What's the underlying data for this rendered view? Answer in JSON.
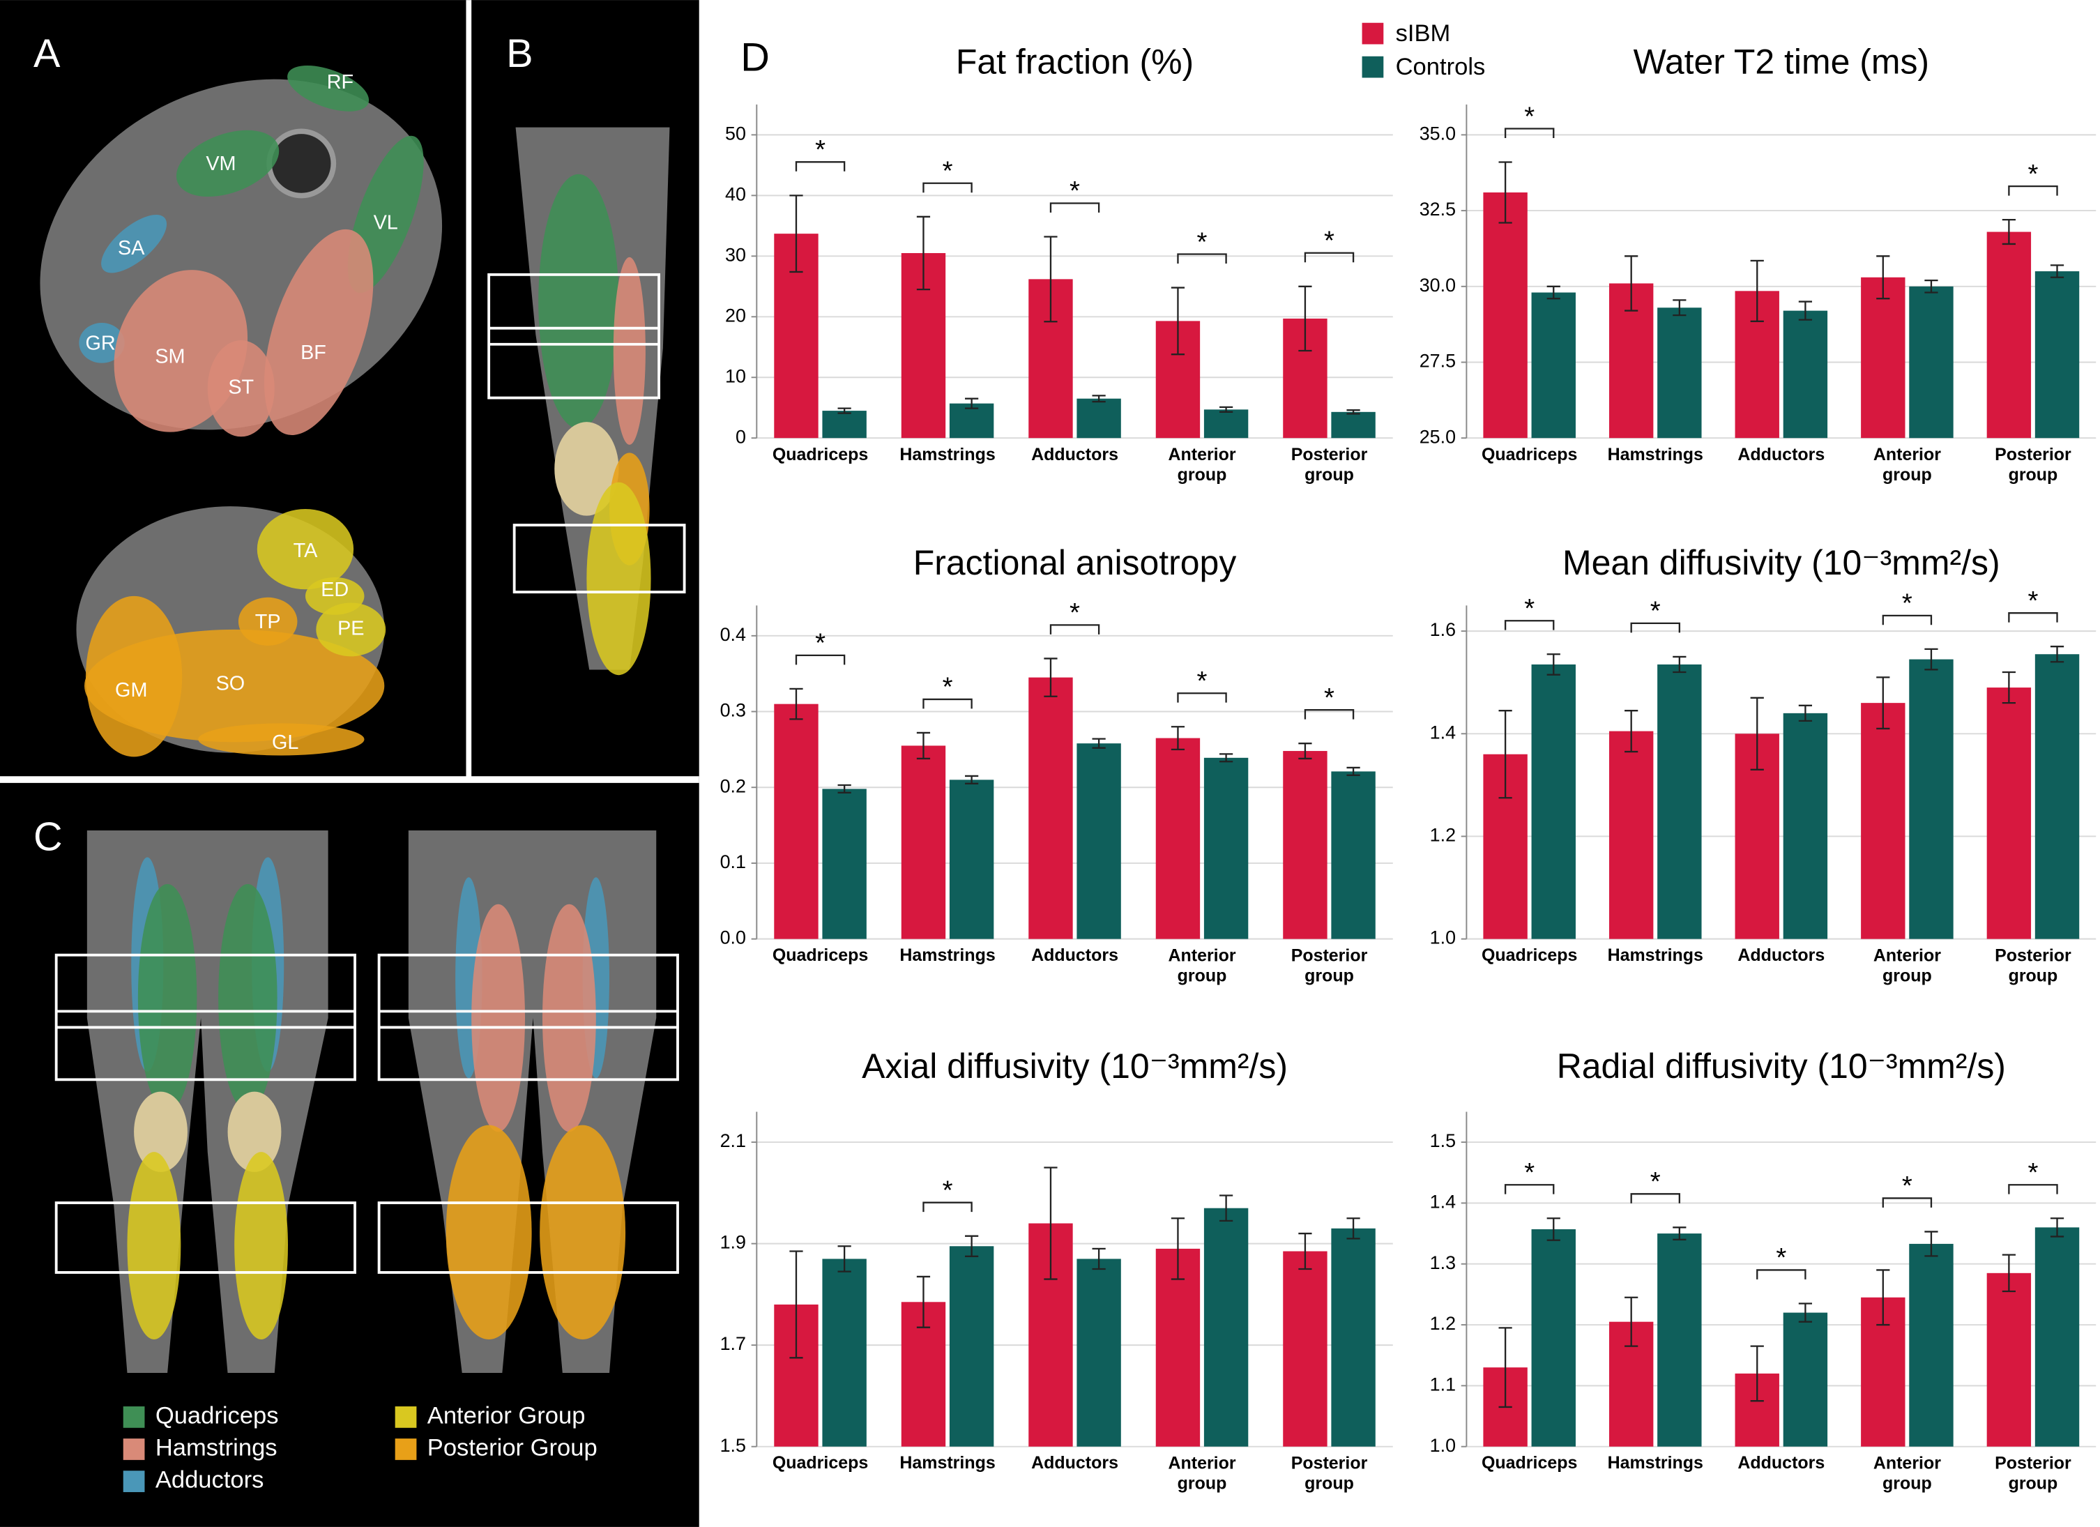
{
  "panels": {
    "labels": [
      "A",
      "B",
      "C",
      "D"
    ],
    "muscles": [
      "RF",
      "VM",
      "VL",
      "SA",
      "GR",
      "SM",
      "ST",
      "BF",
      "TA",
      "ED",
      "PE",
      "TP",
      "GM",
      "SO",
      "GL"
    ],
    "groups": [
      {
        "name": "Quadriceps",
        "color": "#3f8f55"
      },
      {
        "name": "Hamstrings",
        "color": "#d98a78"
      },
      {
        "name": "Adductors",
        "color": "#4a97b8"
      },
      {
        "name": "Anterior Group",
        "color": "#d9c820"
      },
      {
        "name": "Posterior Group",
        "color": "#e8a018"
      }
    ]
  },
  "legend": [
    {
      "name": "sIBM",
      "color": "#d7183f"
    },
    {
      "name": "Controls",
      "color": "#0f5f5b"
    }
  ],
  "chart_data": [
    {
      "type": "bar",
      "title": "Fat fraction (%)",
      "categories": [
        "Quadriceps",
        "Hamstrings",
        "Adductors",
        "Anterior group",
        "Posterior group"
      ],
      "series": [
        {
          "color": "#d7183f",
          "values": [
            33.7,
            30.5,
            26.2,
            19.3,
            19.7
          ],
          "errors": [
            6.3,
            6,
            7,
            5.5,
            5.3
          ]
        },
        {
          "color": "#0f5f5b",
          "values": [
            4.5,
            5.7,
            6.5,
            4.7,
            4.3
          ],
          "errors": [
            0.4,
            0.8,
            0.5,
            0.4,
            0.3
          ]
        }
      ],
      "significance": [
        "*",
        "*",
        "*",
        "*",
        "*"
      ],
      "ylim": [
        0,
        55
      ],
      "yticks": [
        0,
        10,
        20,
        30,
        40,
        50
      ],
      "grid": true
    },
    {
      "type": "bar",
      "title": "Water T2 time (ms)",
      "categories": [
        "Quadriceps",
        "Hamstrings",
        "Adductors",
        "Anterior group",
        "Posterior group"
      ],
      "series": [
        {
          "color": "#d7183f",
          "values": [
            33.1,
            30.1,
            29.85,
            30.3,
            31.8
          ],
          "errors": [
            1.0,
            0.9,
            1.0,
            0.7,
            0.4
          ]
        },
        {
          "color": "#0f5f5b",
          "values": [
            29.8,
            29.3,
            29.2,
            30.0,
            30.5
          ],
          "errors": [
            0.2,
            0.25,
            0.3,
            0.2,
            0.2
          ]
        }
      ],
      "significance": [
        "*",
        null,
        null,
        null,
        "*"
      ],
      "ylim": [
        25,
        36
      ],
      "yticks": [
        {
          "value": 25,
          "label": "25.0"
        },
        {
          "value": 27.5,
          "label": "27.5"
        },
        {
          "value": 30,
          "label": "30.0"
        },
        {
          "value": 32.5,
          "label": "32.5"
        },
        {
          "value": 35,
          "label": "35.0"
        }
      ],
      "grid": true
    },
    {
      "type": "bar",
      "title": "Fractional anisotropy",
      "categories": [
        "Quadriceps",
        "Hamstrings",
        "Adductors",
        "Anterior group",
        "Posterior group"
      ],
      "series": [
        {
          "color": "#d7183f",
          "values": [
            0.31,
            0.255,
            0.345,
            0.265,
            0.248
          ],
          "errors": [
            0.02,
            0.017,
            0.025,
            0.015,
            0.01
          ]
        },
        {
          "color": "#0f5f5b",
          "values": [
            0.198,
            0.21,
            0.258,
            0.239,
            0.221
          ],
          "errors": [
            0.005,
            0.005,
            0.006,
            0.005,
            0.005
          ]
        }
      ],
      "significance": [
        "*",
        "*",
        "*",
        "*",
        "*"
      ],
      "ylim": [
        0,
        0.44
      ],
      "yticks": [
        {
          "value": 0,
          "label": "0.0"
        },
        0.1,
        0.2,
        0.3,
        0.4
      ],
      "grid": true
    },
    {
      "type": "bar",
      "title": "Mean diffusivity (10⁻³mm²/s)",
      "categories": [
        "Quadriceps",
        "Hamstrings",
        "Adductors",
        "Anterior group",
        "Posterior group"
      ],
      "series": [
        {
          "color": "#d7183f",
          "values": [
            1.36,
            1.405,
            1.4,
            1.46,
            1.49
          ],
          "errors": [
            0.085,
            0.04,
            0.07,
            0.05,
            0.03
          ]
        },
        {
          "color": "#0f5f5b",
          "values": [
            1.535,
            1.535,
            1.44,
            1.545,
            1.555
          ],
          "errors": [
            0.02,
            0.015,
            0.015,
            0.02,
            0.015
          ]
        }
      ],
      "significance": [
        "*",
        "*",
        null,
        "*",
        "*"
      ],
      "ylim": [
        1.0,
        1.65
      ],
      "yticks": [
        {
          "value": 1,
          "label": "1.0"
        },
        1.2,
        1.4,
        1.6
      ],
      "grid": true
    },
    {
      "type": "bar",
      "title": "Axial diffusivity (10⁻³mm²/s)",
      "categories": [
        "Quadriceps",
        "Hamstrings",
        "Adductors",
        "Anterior group",
        "Posterior group"
      ],
      "series": [
        {
          "color": "#d7183f",
          "values": [
            1.78,
            1.785,
            1.94,
            1.89,
            1.885
          ],
          "errors": [
            0.105,
            0.05,
            0.11,
            0.06,
            0.035
          ]
        },
        {
          "color": "#0f5f5b",
          "values": [
            1.87,
            1.895,
            1.87,
            1.97,
            1.93
          ],
          "errors": [
            0.025,
            0.02,
            0.02,
            0.025,
            0.02
          ]
        }
      ],
      "significance": [
        null,
        "*",
        null,
        null,
        null
      ],
      "ylim": [
        1.5,
        2.16
      ],
      "yticks": [
        1.5,
        1.7,
        1.9,
        2.1
      ],
      "grid": true
    },
    {
      "type": "bar",
      "title": "Radial diffusivity (10⁻³mm²/s)",
      "categories": [
        "Quadriceps",
        "Hamstrings",
        "Adductors",
        "Anterior group",
        "Posterior group"
      ],
      "series": [
        {
          "color": "#d7183f",
          "values": [
            1.13,
            1.205,
            1.12,
            1.245,
            1.285
          ],
          "errors": [
            0.065,
            0.04,
            0.045,
            0.045,
            0.03
          ]
        },
        {
          "color": "#0f5f5b",
          "values": [
            1.357,
            1.35,
            1.22,
            1.333,
            1.36
          ],
          "errors": [
            0.018,
            0.01,
            0.015,
            0.02,
            0.015
          ]
        }
      ],
      "significance": [
        "*",
        "*",
        "*",
        "*",
        "*"
      ],
      "ylim": [
        1.0,
        1.55
      ],
      "yticks": [
        {
          "value": 1,
          "label": "1.0"
        },
        1.1,
        1.2,
        1.3,
        1.4,
        1.5
      ],
      "grid": true
    }
  ]
}
